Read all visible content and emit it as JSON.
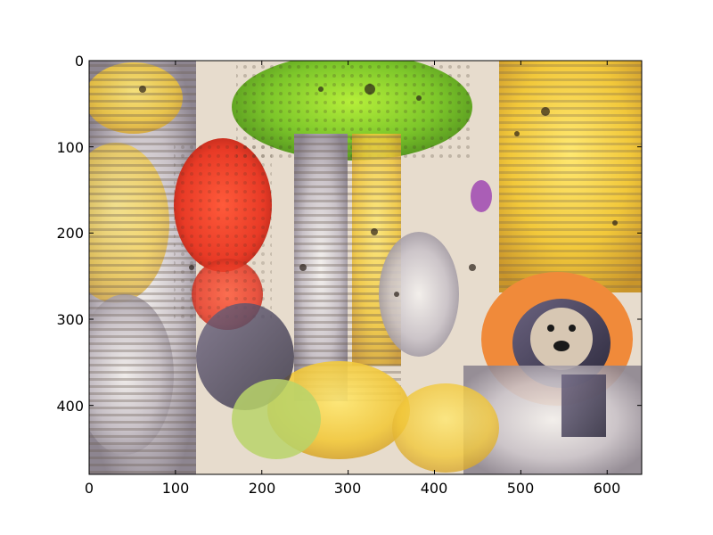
{
  "image": {
    "description_tag": "deep-dream style psychedelic image shown in an image plot",
    "palette": [
      "#f2d94e",
      "#7cc62a",
      "#ef3b2a",
      "#c9c2c8",
      "#3e3a52",
      "#f08a3a",
      "#e9e4da"
    ]
  },
  "chart_data": {
    "type": "image",
    "x_ticks": [
      "0",
      "100",
      "200",
      "300",
      "400",
      "500",
      "600"
    ],
    "y_ticks": [
      "0",
      "100",
      "200",
      "300",
      "400"
    ],
    "x_tick_values": [
      0,
      100,
      200,
      300,
      400,
      500,
      600
    ],
    "y_tick_values": [
      0,
      100,
      200,
      300,
      400
    ],
    "xlim": [
      0,
      640
    ],
    "ylim": [
      480,
      0
    ],
    "title": "",
    "xlabel": "",
    "ylabel": ""
  }
}
